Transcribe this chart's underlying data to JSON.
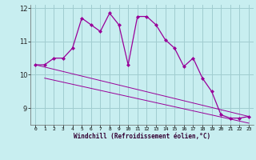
{
  "xlabel": "Windchill (Refroidissement éolien,°C)",
  "background_color": "#c8eef0",
  "grid_color": "#a0ccd0",
  "line_color": "#990099",
  "x_hours": [
    0,
    1,
    2,
    3,
    4,
    5,
    6,
    7,
    8,
    9,
    10,
    11,
    12,
    13,
    14,
    15,
    16,
    17,
    18,
    19,
    20,
    21,
    22,
    23
  ],
  "windchill": [
    10.3,
    10.3,
    10.5,
    10.5,
    10.8,
    11.7,
    11.5,
    11.3,
    11.85,
    11.5,
    10.3,
    11.75,
    11.75,
    11.5,
    11.05,
    10.8,
    10.25,
    10.5,
    9.9,
    9.5,
    8.8,
    8.7,
    8.7,
    8.75
  ],
  "upper_line_x": [
    0,
    23
  ],
  "upper_line_y": [
    10.3,
    8.75
  ],
  "lower_line_x": [
    1,
    23
  ],
  "lower_line_y": [
    9.9,
    8.55
  ],
  "ylim": [
    8.5,
    12.1
  ],
  "xlim": [
    -0.5,
    23.5
  ],
  "yticks": [
    9,
    10,
    11,
    12
  ],
  "xtick_labels": [
    "0",
    "1",
    "2",
    "3",
    "4",
    "5",
    "6",
    "7",
    "8",
    "9",
    "10",
    "11",
    "12",
    "13",
    "14",
    "15",
    "16",
    "17",
    "18",
    "19",
    "20",
    "21",
    "22",
    "23"
  ]
}
